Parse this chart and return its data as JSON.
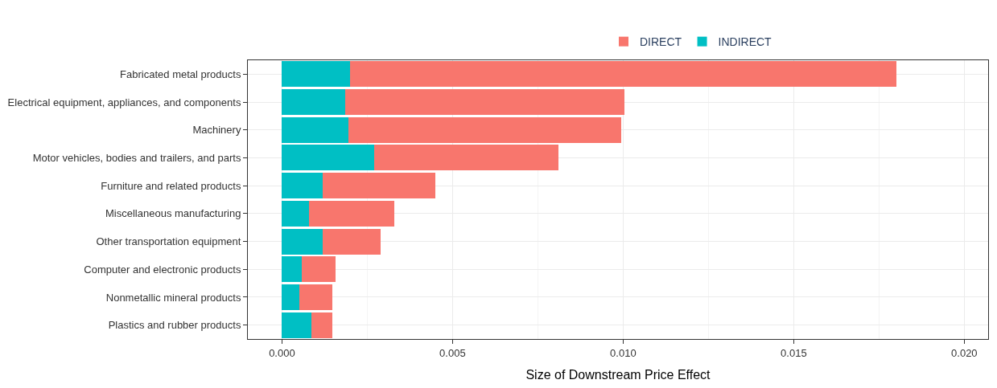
{
  "chart_data": {
    "type": "bar",
    "orientation": "horizontal",
    "stacked": true,
    "xlabel": "Size of Downstream Price Effect",
    "categories": [
      "Fabricated metal products",
      "Electrical equipment, appliances, and components",
      "Machinery",
      "Motor vehicles, bodies and trailers, and parts",
      "Furniture and related products",
      "Miscellaneous manufacturing",
      "Other transportation equipment",
      "Computer and electronic products",
      "Nonmetallic mineral products",
      "Plastics and rubber products"
    ],
    "series": [
      {
        "name": "INDIRECT",
        "color": "#00bfc4",
        "values": [
          0.002,
          0.00185,
          0.00195,
          0.0027,
          0.0012,
          0.0008,
          0.0012,
          0.00057,
          0.0005,
          0.00087
        ]
      },
      {
        "name": "DIRECT",
        "color": "#f8766d",
        "values": [
          0.016,
          0.0082,
          0.008,
          0.0054,
          0.0033,
          0.0025,
          0.0017,
          0.001,
          0.00097,
          0.0006
        ]
      }
    ],
    "xlim": [
      -0.001,
      0.0207
    ],
    "xticks": [
      {
        "value": 0,
        "label": "0.000"
      },
      {
        "value": 0.005,
        "label": "0.005"
      },
      {
        "value": 0.01,
        "label": "0.010"
      },
      {
        "value": 0.015,
        "label": "0.015"
      },
      {
        "value": 0.02,
        "label": "0.020"
      }
    ],
    "grid": true,
    "legend": "top"
  }
}
